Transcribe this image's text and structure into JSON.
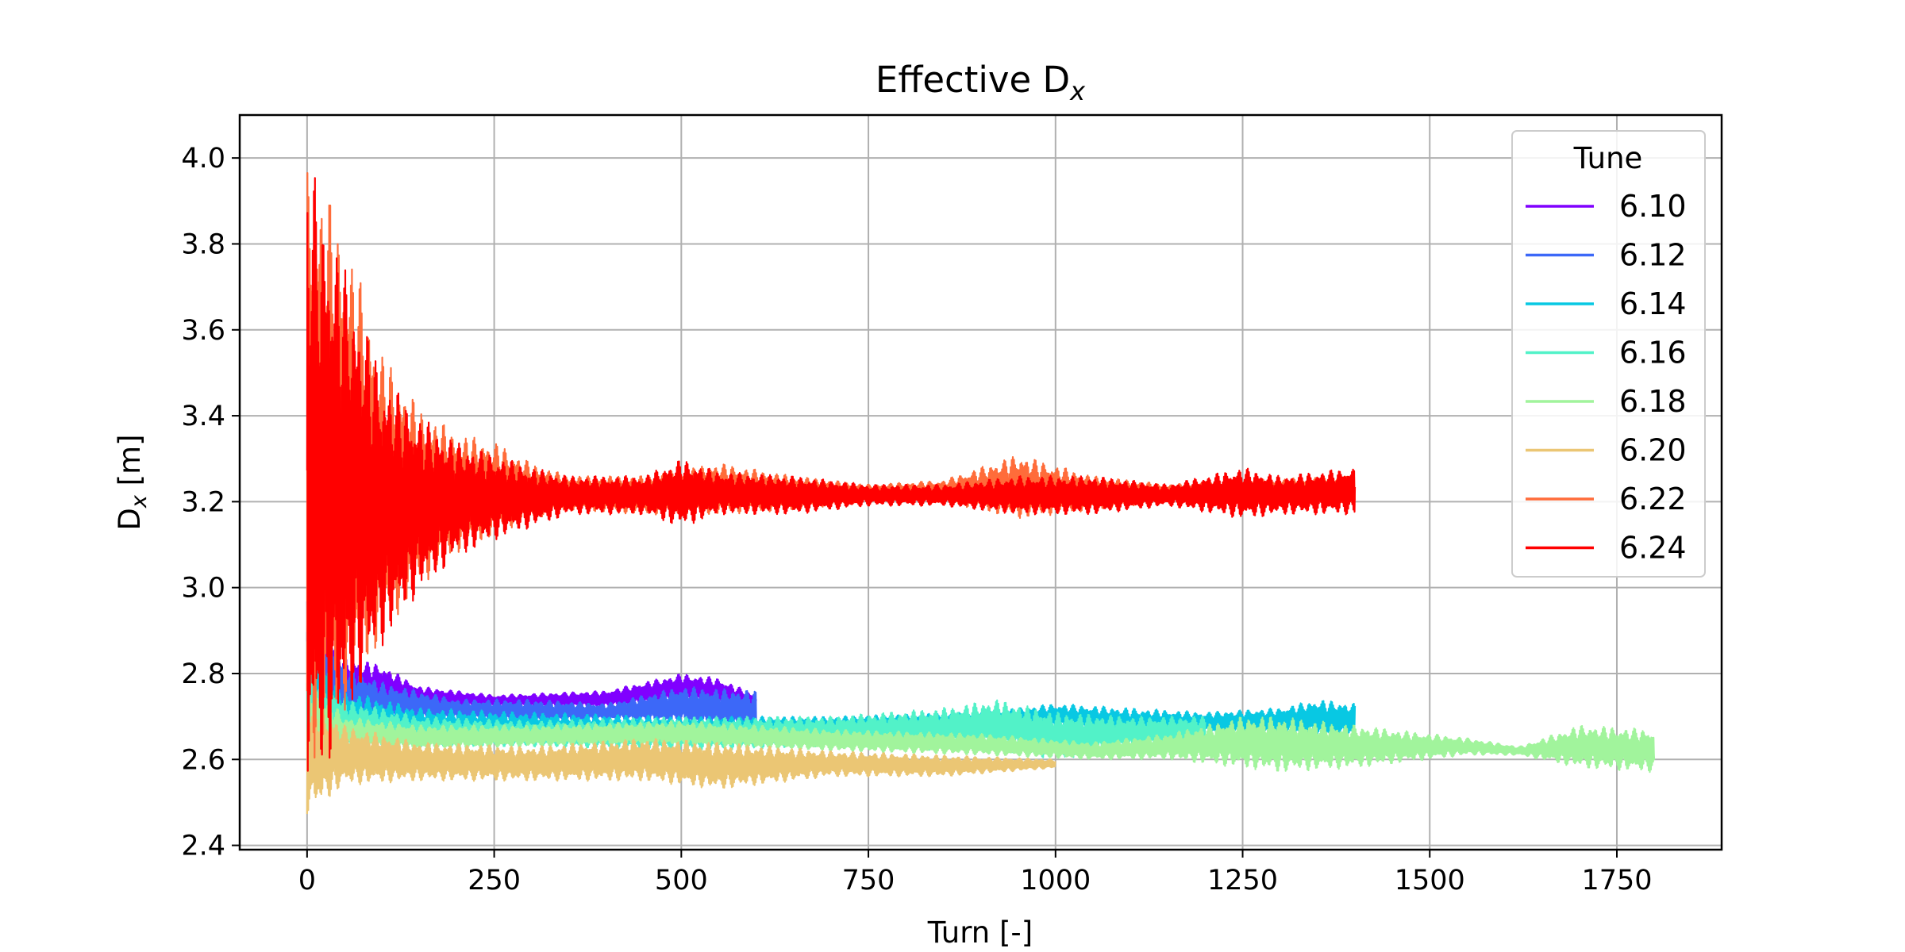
{
  "chart_data": {
    "type": "line",
    "title": "Effective D",
    "title_sub": "x",
    "xlabel": "Turn [-]",
    "ylabel_main": "D",
    "ylabel_sub": "x",
    "ylabel_unit": " [m]",
    "xlim": [
      -90,
      1890
    ],
    "ylim": [
      2.39,
      4.1
    ],
    "xticks": [
      0,
      250,
      500,
      750,
      1000,
      1250,
      1500,
      1750
    ],
    "yticks": [
      2.4,
      2.6,
      2.8,
      3.0,
      3.2,
      3.4,
      3.6,
      3.8,
      4.0
    ],
    "ytick_labels": [
      "2.4",
      "2.6",
      "2.8",
      "3.0",
      "3.2",
      "3.4",
      "3.6",
      "3.8",
      "4.0"
    ],
    "grid": true,
    "legend": {
      "title": "Tune",
      "placement": "top-right"
    },
    "series": [
      {
        "name": "6.10",
        "color": "#8000ff",
        "x_end": 600,
        "env": [
          [
            0,
            2.75,
            3.0
          ],
          [
            50,
            2.7,
            2.84
          ],
          [
            100,
            2.72,
            2.82
          ],
          [
            150,
            2.72,
            2.77
          ],
          [
            250,
            2.72,
            2.75
          ],
          [
            400,
            2.72,
            2.76
          ],
          [
            500,
            2.73,
            2.8
          ],
          [
            550,
            2.72,
            2.79
          ],
          [
            600,
            2.71,
            2.75
          ]
        ]
      },
      {
        "name": "6.12",
        "color": "#3c68f8",
        "x_end": 600,
        "env": [
          [
            0,
            2.7,
            3.0
          ],
          [
            50,
            2.66,
            2.83
          ],
          [
            100,
            2.68,
            2.78
          ],
          [
            200,
            2.69,
            2.74
          ],
          [
            300,
            2.68,
            2.74
          ],
          [
            400,
            2.69,
            2.73
          ],
          [
            500,
            2.68,
            2.77
          ],
          [
            600,
            2.66,
            2.76
          ]
        ]
      },
      {
        "name": "6.14",
        "color": "#08c8e3",
        "x_end": 1400,
        "env": [
          [
            0,
            2.62,
            2.9
          ],
          [
            50,
            2.63,
            2.76
          ],
          [
            150,
            2.64,
            2.72
          ],
          [
            300,
            2.64,
            2.71
          ],
          [
            500,
            2.64,
            2.7
          ],
          [
            700,
            2.65,
            2.7
          ],
          [
            900,
            2.66,
            2.71
          ],
          [
            1000,
            2.67,
            2.73
          ],
          [
            1100,
            2.65,
            2.72
          ],
          [
            1200,
            2.66,
            2.71
          ],
          [
            1300,
            2.66,
            2.72
          ],
          [
            1350,
            2.65,
            2.74
          ],
          [
            1400,
            2.65,
            2.73
          ]
        ]
      },
      {
        "name": "6.16",
        "color": "#52f2c8",
        "x_end": 1200,
        "env": [
          [
            0,
            2.6,
            2.85
          ],
          [
            50,
            2.62,
            2.74
          ],
          [
            150,
            2.63,
            2.7
          ],
          [
            300,
            2.63,
            2.69
          ],
          [
            500,
            2.62,
            2.7
          ],
          [
            700,
            2.63,
            2.7
          ],
          [
            850,
            2.62,
            2.72
          ],
          [
            920,
            2.62,
            2.74
          ],
          [
            1000,
            2.6,
            2.71
          ],
          [
            1100,
            2.62,
            2.7
          ],
          [
            1200,
            2.63,
            2.7
          ]
        ]
      },
      {
        "name": "6.18",
        "color": "#a1f49c",
        "x_end": 1800,
        "env": [
          [
            0,
            2.56,
            2.8
          ],
          [
            50,
            2.62,
            2.7
          ],
          [
            150,
            2.62,
            2.68
          ],
          [
            300,
            2.63,
            2.68
          ],
          [
            500,
            2.63,
            2.69
          ],
          [
            700,
            2.62,
            2.67
          ],
          [
            900,
            2.61,
            2.66
          ],
          [
            1050,
            2.6,
            2.64
          ],
          [
            1150,
            2.6,
            2.66
          ],
          [
            1250,
            2.58,
            2.7
          ],
          [
            1300,
            2.57,
            2.7
          ],
          [
            1400,
            2.58,
            2.68
          ],
          [
            1550,
            2.61,
            2.65
          ],
          [
            1620,
            2.61,
            2.63
          ],
          [
            1700,
            2.58,
            2.68
          ],
          [
            1800,
            2.57,
            2.67
          ]
        ]
      },
      {
        "name": "6.20",
        "color": "#ebc674",
        "x_end": 1000,
        "env": [
          [
            0,
            2.47,
            2.75
          ],
          [
            50,
            2.54,
            2.68
          ],
          [
            150,
            2.55,
            2.64
          ],
          [
            300,
            2.55,
            2.63
          ],
          [
            450,
            2.55,
            2.65
          ],
          [
            550,
            2.53,
            2.64
          ],
          [
            700,
            2.56,
            2.62
          ],
          [
            850,
            2.56,
            2.61
          ],
          [
            1000,
            2.58,
            2.6
          ]
        ]
      },
      {
        "name": "6.22",
        "color": "#ff6c3a",
        "x_end": 1400,
        "env": [
          [
            0,
            2.6,
            4.0
          ],
          [
            20,
            2.6,
            3.95
          ],
          [
            60,
            2.75,
            3.78
          ],
          [
            100,
            2.88,
            3.55
          ],
          [
            150,
            3.0,
            3.42
          ],
          [
            200,
            3.08,
            3.36
          ],
          [
            250,
            3.12,
            3.34
          ],
          [
            300,
            3.16,
            3.29
          ],
          [
            350,
            3.18,
            3.26
          ],
          [
            450,
            3.17,
            3.26
          ],
          [
            550,
            3.17,
            3.29
          ],
          [
            650,
            3.18,
            3.26
          ],
          [
            750,
            3.2,
            3.24
          ],
          [
            850,
            3.2,
            3.25
          ],
          [
            950,
            3.16,
            3.31
          ],
          [
            1050,
            3.18,
            3.26
          ],
          [
            1150,
            3.2,
            3.24
          ],
          [
            1250,
            3.2,
            3.25
          ],
          [
            1400,
            3.19,
            3.26
          ]
        ]
      },
      {
        "name": "6.24",
        "color": "#ff0000",
        "x_end": 1400,
        "env": [
          [
            0,
            2.5,
            4.02
          ],
          [
            20,
            2.55,
            3.9
          ],
          [
            60,
            2.72,
            3.7
          ],
          [
            100,
            2.86,
            3.5
          ],
          [
            150,
            2.99,
            3.4
          ],
          [
            200,
            3.07,
            3.34
          ],
          [
            250,
            3.11,
            3.31
          ],
          [
            300,
            3.14,
            3.28
          ],
          [
            350,
            3.17,
            3.26
          ],
          [
            450,
            3.17,
            3.26
          ],
          [
            500,
            3.14,
            3.3
          ],
          [
            550,
            3.17,
            3.27
          ],
          [
            650,
            3.17,
            3.26
          ],
          [
            750,
            3.19,
            3.24
          ],
          [
            850,
            3.19,
            3.24
          ],
          [
            950,
            3.17,
            3.26
          ],
          [
            1050,
            3.17,
            3.26
          ],
          [
            1150,
            3.19,
            3.24
          ],
          [
            1250,
            3.16,
            3.28
          ],
          [
            1300,
            3.17,
            3.26
          ],
          [
            1400,
            3.17,
            3.28
          ]
        ]
      }
    ]
  }
}
